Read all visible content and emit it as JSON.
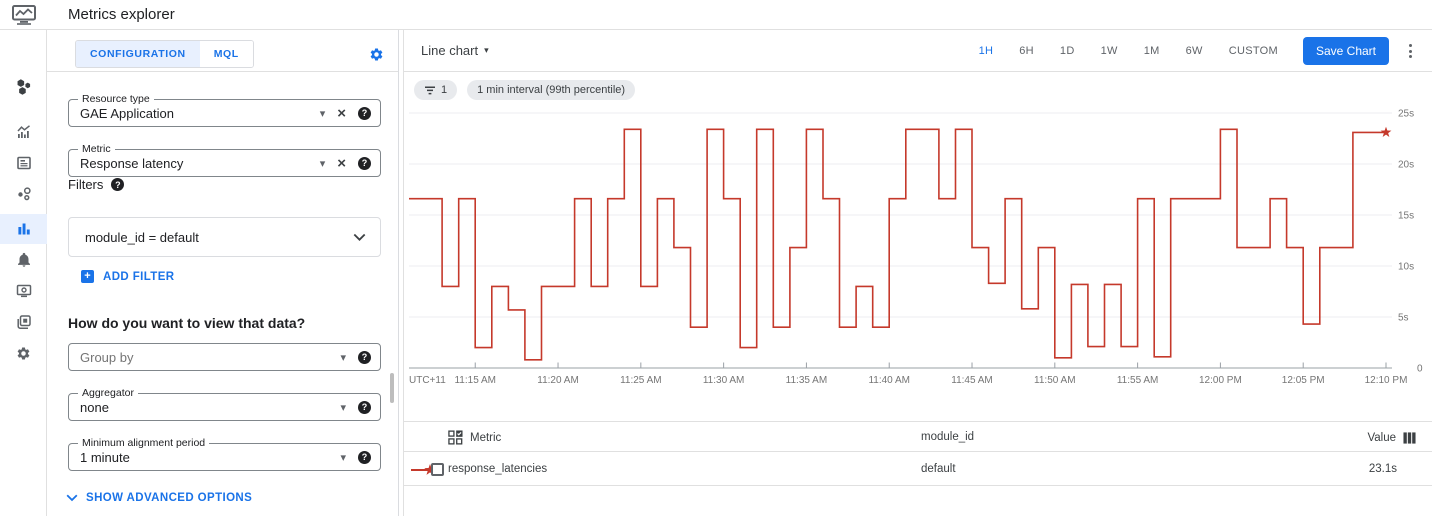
{
  "header": {
    "title": "Metrics explorer"
  },
  "sidebar": {
    "items": [
      {
        "icon": "monitoring-overview-icon",
        "active": false
      },
      {
        "icon": "metrics-icon",
        "active": false
      },
      {
        "icon": "dashboards-icon",
        "active": false
      },
      {
        "icon": "services-icon",
        "active": false
      },
      {
        "icon": "metrics-explorer-icon",
        "active": true
      },
      {
        "icon": "alerting-bell-icon",
        "active": false
      },
      {
        "icon": "uptime-checks-icon",
        "active": false
      },
      {
        "icon": "groups-icon",
        "active": false
      },
      {
        "icon": "settings-gear-icon",
        "active": false
      }
    ]
  },
  "config": {
    "tabs": [
      {
        "label": "CONFIGURATION",
        "active": true
      },
      {
        "label": "MQL",
        "active": false
      }
    ],
    "resource_type": {
      "label": "Resource type",
      "value": "GAE Application"
    },
    "metric": {
      "label": "Metric",
      "value": "Response latency"
    },
    "filters": {
      "label": "Filters",
      "expression": "module_id = default",
      "add_filter_label": "ADD FILTER"
    },
    "view_question": "How do you want to view that data?",
    "group_by": {
      "placeholder": "Group by"
    },
    "aggregator": {
      "label": "Aggregator",
      "value": "none"
    },
    "min_alignment": {
      "label": "Minimum alignment period",
      "value": "1 minute"
    },
    "advanced_options_label": "SHOW ADVANCED OPTIONS"
  },
  "chart_panel": {
    "chart_type_label": "Line chart",
    "time_ranges": [
      "1H",
      "6H",
      "1D",
      "1W",
      "1M",
      "6W",
      "CUSTOM"
    ],
    "active_range": "1H",
    "save_button_label": "Save Chart",
    "filter_chip_count": "1",
    "interval_chip": "1 min interval (99th percentile)"
  },
  "chart_data": {
    "type": "line",
    "style": "step-after",
    "grid": true,
    "ylim": [
      0,
      25
    ],
    "yticks": [
      {
        "v": 5,
        "label": "5s"
      },
      {
        "v": 10,
        "label": "10s"
      },
      {
        "v": 15,
        "label": "15s"
      },
      {
        "v": 20,
        "label": "20s"
      },
      {
        "v": 25,
        "label": "25s"
      }
    ],
    "y_zero_label": "0",
    "x_prefix_label": "UTC+11",
    "xticks": [
      "11:15 AM",
      "11:20 AM",
      "11:25 AM",
      "11:30 AM",
      "11:35 AM",
      "11:40 AM",
      "11:45 AM",
      "11:50 AM",
      "11:55 AM",
      "12:00 PM",
      "12:05 PM",
      "12:10 PM"
    ],
    "xtick_first_index": 4,
    "xtick_every": 5,
    "end_marker": "star",
    "series": [
      {
        "name": "response_latencies",
        "module_id": "default",
        "color": "#c5392b",
        "unit": "s",
        "x_minutes": [
          "11:11",
          "11:12",
          "11:13",
          "11:14",
          "11:15",
          "11:16",
          "11:17",
          "11:18",
          "11:19",
          "11:20",
          "11:21",
          "11:22",
          "11:23",
          "11:24",
          "11:25",
          "11:26",
          "11:27",
          "11:28",
          "11:29",
          "11:30",
          "11:31",
          "11:32",
          "11:33",
          "11:34",
          "11:35",
          "11:36",
          "11:37",
          "11:38",
          "11:39",
          "11:40",
          "11:41",
          "11:42",
          "11:43",
          "11:44",
          "11:45",
          "11:46",
          "11:47",
          "11:48",
          "11:49",
          "11:50",
          "11:51",
          "11:52",
          "11:53",
          "11:54",
          "11:55",
          "11:56",
          "11:57",
          "11:58",
          "11:59",
          "12:00",
          "12:01",
          "12:02",
          "12:03",
          "12:04",
          "12:05",
          "12:06",
          "12:07",
          "12:08",
          "12:09"
        ],
        "values_seconds": [
          16.6,
          16.6,
          8,
          16.6,
          2,
          8,
          5.7,
          0.8,
          8,
          8,
          16.6,
          8,
          16.6,
          23.4,
          8,
          16.6,
          11.8,
          4,
          23.4,
          16.6,
          2,
          23.4,
          4,
          11.8,
          23.4,
          16.6,
          4,
          8,
          4,
          16.6,
          23.4,
          23.4,
          16.6,
          23.4,
          11.8,
          8.3,
          16.6,
          5.8,
          11.8,
          1,
          8.2,
          2.1,
          8.2,
          2.1,
          16.6,
          1.1,
          16.6,
          16.6,
          16.6,
          23.4,
          11.8,
          11.8,
          16.6,
          11.8,
          4.3,
          11.8,
          11.8,
          23.1,
          23.1
        ]
      }
    ]
  },
  "table": {
    "columns": [
      "Metric",
      "module_id",
      "Value"
    ],
    "rows": [
      {
        "metric": "response_latencies",
        "module_id": "default",
        "value": "23.1s"
      }
    ]
  },
  "colors": {
    "accent": "#1a73e8",
    "active_tab_bg": "#e8f0fe",
    "chip_bg": "#e8eaed",
    "line_red": "#c5392b",
    "border": "#e0e0e0",
    "axis_text": "#757575"
  },
  "icons": {
    "filter_chip": "filter-list-icon",
    "table_header_left": "select-all-icon",
    "table_header_right": "view-columns-icon",
    "row_marker": "red-line-star-marker"
  }
}
